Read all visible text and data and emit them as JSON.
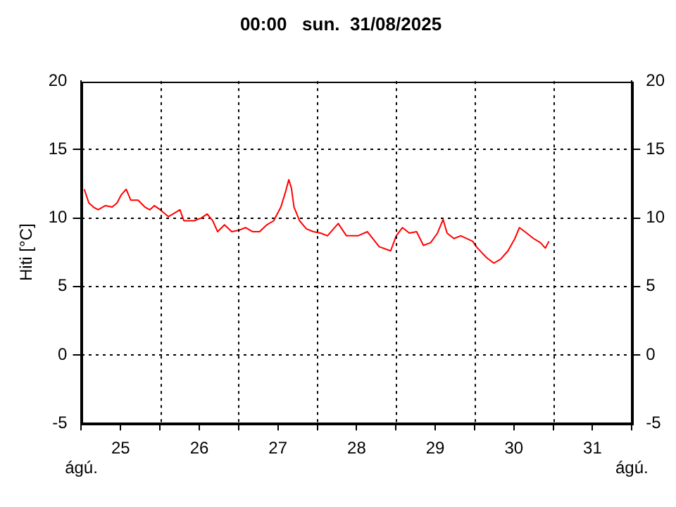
{
  "chart_data": {
    "type": "line",
    "title": "00:00   sun.  31/08/2025",
    "ylabel": "Hiti [°C]",
    "x": [
      "2025-08-25T00:54",
      "2025-08-25T02:18",
      "2025-08-25T03:42",
      "2025-08-25T05:06",
      "2025-08-25T07:18",
      "2025-08-25T09:24",
      "2025-08-25T10:54",
      "2025-08-25T12:12",
      "2025-08-25T13:42",
      "2025-08-25T15:06",
      "2025-08-25T17:18",
      "2025-08-25T19:24",
      "2025-08-25T20:54",
      "2025-08-25T22:18",
      "2025-08-26T00:06",
      "2025-08-26T02:36",
      "2025-08-26T04:42",
      "2025-08-26T06:06",
      "2025-08-26T07:18",
      "2025-08-26T10:24",
      "2025-08-26T12:36",
      "2025-08-26T14:24",
      "2025-08-26T16:06",
      "2025-08-26T17:36",
      "2025-08-26T19:42",
      "2025-08-26T21:54",
      "2025-08-27T00:00",
      "2025-08-27T02:06",
      "2025-08-27T04:18",
      "2025-08-27T06:24",
      "2025-08-27T08:36",
      "2025-08-27T10:42",
      "2025-08-27T12:54",
      "2025-08-27T14:18",
      "2025-08-27T15:18",
      "2025-08-27T16:06",
      "2025-08-27T16:54",
      "2025-08-27T18:36",
      "2025-08-27T20:42",
      "2025-08-27T22:48",
      "2025-08-28T01:00",
      "2025-08-28T03:06",
      "2025-08-28T06:24",
      "2025-08-28T08:54",
      "2025-08-28T12:24",
      "2025-08-28T15:18",
      "2025-08-28T18:54",
      "2025-08-28T22:24",
      "2025-08-29T00:06",
      "2025-08-29T02:00",
      "2025-08-29T04:06",
      "2025-08-29T06:18",
      "2025-08-29T08:24",
      "2025-08-29T10:36",
      "2025-08-29T12:42",
      "2025-08-29T14:24",
      "2025-08-29T15:36",
      "2025-08-29T17:42",
      "2025-08-29T19:48",
      "2025-08-29T23:24",
      "2025-08-30T00:54",
      "2025-08-30T03:42",
      "2025-08-30T05:54",
      "2025-08-30T08:00",
      "2025-08-30T10:12",
      "2025-08-30T12:18",
      "2025-08-30T13:42",
      "2025-08-30T15:54",
      "2025-08-30T18:00",
      "2025-08-30T20:06",
      "2025-08-30T21:36",
      "2025-08-30T22:42"
    ],
    "series": [
      {
        "color": "#ff0000",
        "values": [
          12.1,
          11.1,
          10.8,
          10.6,
          10.9,
          10.8,
          11.1,
          11.7,
          12.1,
          11.3,
          11.3,
          10.8,
          10.6,
          10.9,
          10.6,
          10.1,
          10.4,
          10.6,
          9.8,
          9.8,
          10.0,
          10.3,
          9.8,
          9.0,
          9.5,
          9.0,
          9.1,
          9.3,
          9.0,
          9.0,
          9.5,
          9.8,
          10.8,
          11.9,
          12.8,
          12.2,
          10.8,
          9.8,
          9.2,
          9.0,
          8.9,
          8.7,
          9.6,
          8.7,
          8.7,
          9.0,
          7.9,
          7.6,
          8.7,
          9.3,
          8.9,
          9.0,
          8.0,
          8.2,
          8.9,
          9.9,
          8.9,
          8.5,
          8.7,
          8.3,
          7.8,
          7.1,
          6.7,
          7.0,
          7.6,
          8.5,
          9.3,
          8.9,
          8.5,
          8.2,
          7.8,
          8.3
        ]
      }
    ],
    "xlim": [
      "2025-08-25T00:00",
      "2025-09-01T00:00"
    ],
    "xticks": [
      {
        "value": "2025-08-25T00:00",
        "label": null
      },
      {
        "value": "2025-08-25T12:00",
        "label": "25"
      },
      {
        "value": "2025-08-26T00:00",
        "label": null
      },
      {
        "value": "2025-08-26T12:00",
        "label": "26"
      },
      {
        "value": "2025-08-27T00:00",
        "label": null
      },
      {
        "value": "2025-08-27T12:00",
        "label": "27"
      },
      {
        "value": "2025-08-28T00:00",
        "label": null
      },
      {
        "value": "2025-08-28T12:00",
        "label": "28"
      },
      {
        "value": "2025-08-29T00:00",
        "label": null
      },
      {
        "value": "2025-08-29T12:00",
        "label": "29"
      },
      {
        "value": "2025-08-30T00:00",
        "label": null
      },
      {
        "value": "2025-08-30T12:00",
        "label": "30"
      },
      {
        "value": "2025-08-31T00:00",
        "label": null
      },
      {
        "value": "2025-08-31T12:00",
        "label": "31"
      },
      {
        "value": "2025-09-01T00:00",
        "label": null
      }
    ],
    "ylim": [
      -5,
      20
    ],
    "yticks": [
      -5,
      0,
      5,
      10,
      15,
      20
    ],
    "y2lim": [
      -5,
      20
    ],
    "y2ticks": [
      -5,
      0,
      5,
      10,
      15,
      20
    ],
    "annotations": [
      "ágú.",
      "ágú."
    ],
    "grid": true,
    "legend": false,
    "marker": "none",
    "line_style": "solid"
  }
}
